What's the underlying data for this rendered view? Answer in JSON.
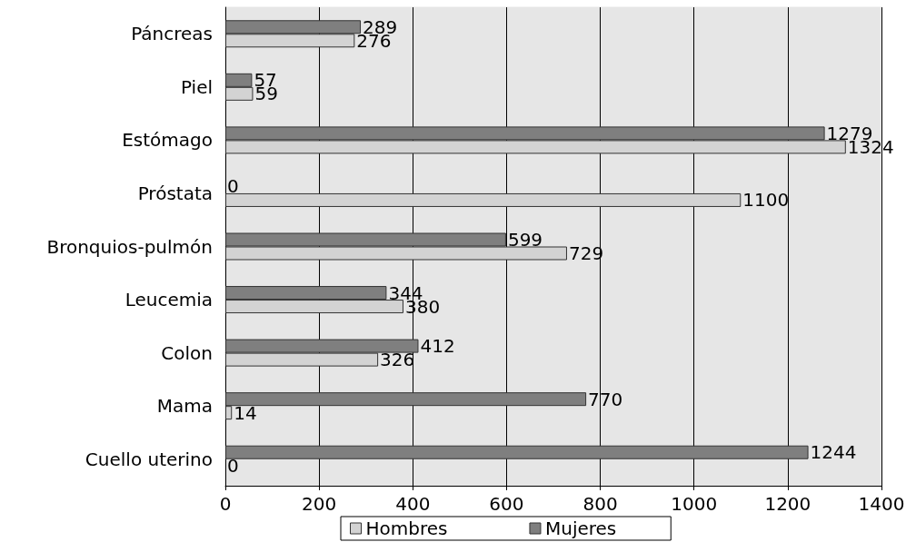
{
  "chart_data": {
    "type": "bar",
    "orientation": "horizontal",
    "categories": [
      "Páncreas",
      "Piel",
      "Estómago",
      "Próstata",
      "Bronquios-pulmón",
      "Leucemia",
      "Colon",
      "Mama",
      "Cuello uterino"
    ],
    "series": [
      {
        "name": "Mujeres",
        "color": "#7f7f7f",
        "values": [
          289,
          57,
          1279,
          0,
          599,
          344,
          412,
          770,
          1244
        ]
      },
      {
        "name": "Hombres",
        "color": "#d3d3d3",
        "values": [
          276,
          59,
          1324,
          1100,
          729,
          380,
          326,
          14,
          0
        ]
      }
    ],
    "xlim": [
      0,
      1400
    ],
    "xticks": [
      0,
      200,
      400,
      600,
      800,
      1000,
      1200,
      1400
    ],
    "grid": "x",
    "legend": "bottom",
    "data_labels": true
  }
}
